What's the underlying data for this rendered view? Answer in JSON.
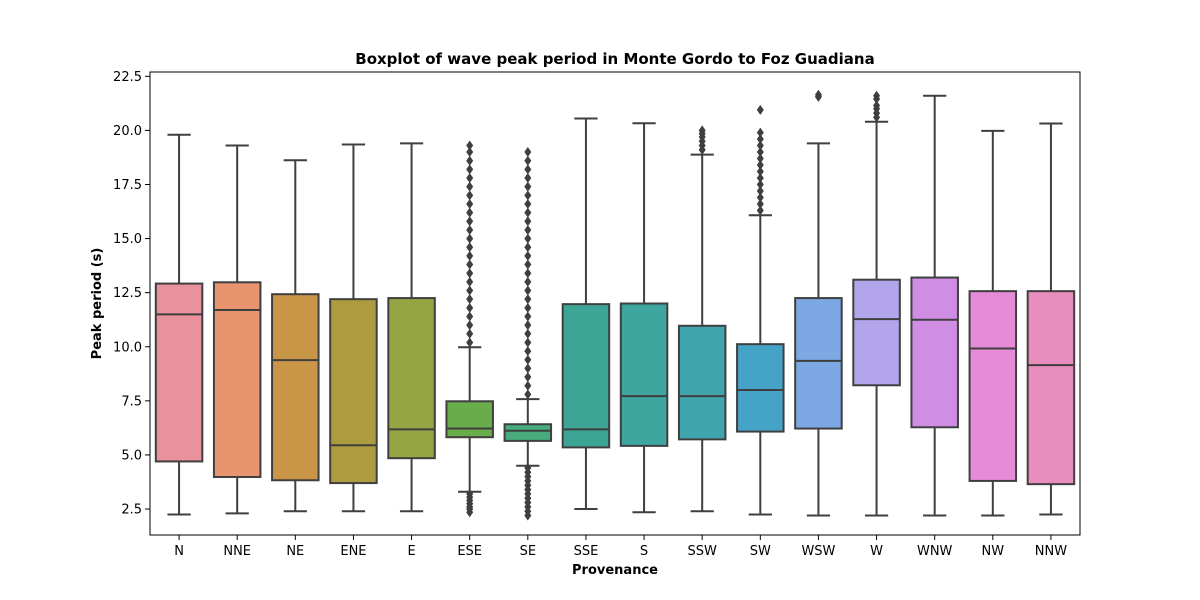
{
  "chart_data": {
    "type": "box",
    "title": "Boxplot of wave peak period in Monte Gordo to Foz Guadiana",
    "xlabel": "Provenance",
    "ylabel": "Peak period (s)",
    "ylim": [
      1.3,
      22.7
    ],
    "yticks": [
      "2.5",
      "5.0",
      "7.5",
      "10.0",
      "12.5",
      "15.0",
      "17.5",
      "20.0",
      "22.5"
    ],
    "ytick_values": [
      2.5,
      5.0,
      7.5,
      10.0,
      12.5,
      15.0,
      17.5,
      20.0,
      22.5
    ],
    "grid": false,
    "categories": [
      "N",
      "NNE",
      "NE",
      "ENE",
      "E",
      "ESE",
      "SE",
      "SSE",
      "S",
      "SSW",
      "SW",
      "WSW",
      "W",
      "WNW",
      "NW",
      "NNW"
    ],
    "boxes": [
      {
        "category": "N",
        "color": "#ea929c",
        "whislo": 2.25,
        "q1": 4.7,
        "median": 11.5,
        "q3": 12.92,
        "whishi": 19.8,
        "fliers_low": [],
        "fliers_high": []
      },
      {
        "category": "NNE",
        "color": "#e8956f",
        "whislo": 2.3,
        "q1": 3.98,
        "median": 11.7,
        "q3": 12.98,
        "whishi": 19.3,
        "fliers_low": [],
        "fliers_high": []
      },
      {
        "category": "NE",
        "color": "#c99648",
        "whislo": 2.4,
        "q1": 3.83,
        "median": 9.38,
        "q3": 12.43,
        "whishi": 18.62,
        "fliers_low": [],
        "fliers_high": []
      },
      {
        "category": "ENE",
        "color": "#ad9c3f",
        "whislo": 2.4,
        "q1": 3.7,
        "median": 5.45,
        "q3": 12.2,
        "whishi": 19.35,
        "fliers_low": [],
        "fliers_high": []
      },
      {
        "category": "E",
        "color": "#96a543",
        "whislo": 2.4,
        "q1": 4.85,
        "median": 6.18,
        "q3": 12.25,
        "whishi": 19.4,
        "fliers_low": [],
        "fliers_high": []
      },
      {
        "category": "ESE",
        "color": "#68ad49",
        "whislo": 3.3,
        "q1": 5.82,
        "median": 6.22,
        "q3": 7.48,
        "whishi": 9.98,
        "fliers_low": [
          2.35,
          2.5,
          2.6,
          2.75,
          2.9,
          3.05,
          3.2
        ],
        "fliers_high": [
          10.2,
          10.6,
          11.0,
          11.4,
          11.8,
          12.2,
          12.6,
          13.0,
          13.4,
          13.8,
          14.2,
          14.6,
          15.0,
          15.4,
          15.8,
          16.2,
          16.6,
          17.0,
          17.4,
          17.8,
          18.2,
          18.6,
          19.0,
          19.3
        ]
      },
      {
        "category": "SE",
        "color": "#47ab7c",
        "whislo": 4.5,
        "q1": 5.65,
        "median": 6.12,
        "q3": 6.42,
        "whishi": 7.58,
        "fliers_low": [
          2.2,
          2.4,
          2.6,
          2.8,
          3.0,
          3.2,
          3.4,
          3.6,
          3.8,
          4.0,
          4.2,
          4.4
        ],
        "fliers_high": [
          7.8,
          8.2,
          8.6,
          9.0,
          9.4,
          9.8,
          10.2,
          10.6,
          11.0,
          11.4,
          11.8,
          12.2,
          12.6,
          13.0,
          13.4,
          13.8,
          14.2,
          14.6,
          15.0,
          15.4,
          15.8,
          16.2,
          16.6,
          17.0,
          17.4,
          17.8,
          18.2,
          18.6,
          19.0
        ]
      },
      {
        "category": "SSE",
        "color": "#3ca595",
        "whislo": 2.5,
        "q1": 5.35,
        "median": 6.18,
        "q3": 11.97,
        "whishi": 20.55,
        "fliers_low": [],
        "fliers_high": []
      },
      {
        "category": "S",
        "color": "#3ea59f",
        "whislo": 2.35,
        "q1": 5.42,
        "median": 7.72,
        "q3": 12.0,
        "whishi": 20.33,
        "fliers_low": [],
        "fliers_high": []
      },
      {
        "category": "SSW",
        "color": "#40a4ac",
        "whislo": 2.4,
        "q1": 5.72,
        "median": 7.72,
        "q3": 10.97,
        "whishi": 18.88,
        "fliers_low": [],
        "fliers_high": [
          19.1,
          19.3,
          19.5,
          19.7,
          19.85,
          20.0
        ]
      },
      {
        "category": "SW",
        "color": "#45a3c7",
        "whislo": 2.25,
        "q1": 6.08,
        "median": 8.0,
        "q3": 10.12,
        "whishi": 16.08,
        "fliers_low": [],
        "fliers_high": [
          16.3,
          16.6,
          16.9,
          17.2,
          17.5,
          17.8,
          18.1,
          18.4,
          18.7,
          19.0,
          19.3,
          19.6,
          19.9,
          20.95
        ]
      },
      {
        "category": "WSW",
        "color": "#7ca8e3",
        "whislo": 2.2,
        "q1": 6.22,
        "median": 9.35,
        "q3": 12.25,
        "whishi": 19.4,
        "fliers_low": [],
        "fliers_high": [
          21.55,
          21.65
        ]
      },
      {
        "category": "W",
        "color": "#b3a5ec",
        "whislo": 2.2,
        "q1": 8.22,
        "median": 11.28,
        "q3": 13.1,
        "whishi": 20.4,
        "fliers_low": [],
        "fliers_high": [
          20.6,
          20.8,
          21.0,
          21.15,
          21.45,
          21.6
        ]
      },
      {
        "category": "WNW",
        "color": "#d08de4",
        "whislo": 2.2,
        "q1": 6.28,
        "median": 11.25,
        "q3": 13.2,
        "whishi": 21.6,
        "fliers_low": [],
        "fliers_high": []
      },
      {
        "category": "NW",
        "color": "#e68bd8",
        "whislo": 2.2,
        "q1": 3.8,
        "median": 9.92,
        "q3": 12.57,
        "whishi": 19.98,
        "fliers_low": [],
        "fliers_high": []
      },
      {
        "category": "NNW",
        "color": "#e98cbe",
        "whislo": 2.25,
        "q1": 3.65,
        "median": 9.15,
        "q3": 12.57,
        "whishi": 20.32,
        "fliers_low": [],
        "fliers_high": []
      }
    ]
  }
}
